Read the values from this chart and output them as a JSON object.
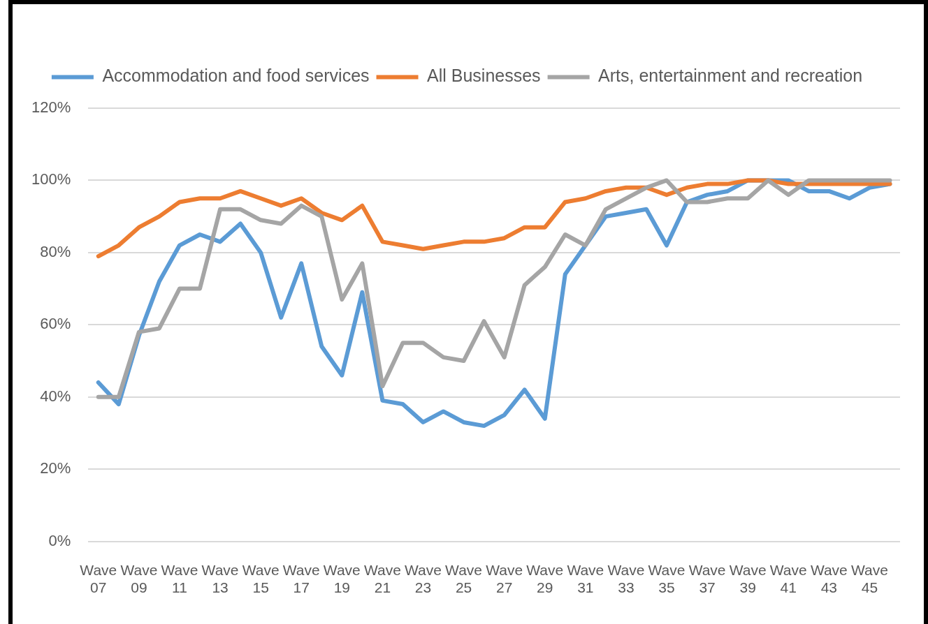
{
  "chart_data": {
    "type": "line",
    "categories": [
      "Wave 07",
      null,
      "Wave 09",
      null,
      "Wave 11",
      null,
      "Wave 13",
      null,
      "Wave 15",
      null,
      "Wave 17",
      null,
      "Wave 19",
      null,
      "Wave 21",
      null,
      "Wave 23",
      null,
      "Wave 25",
      null,
      "Wave 27",
      null,
      "Wave 29",
      null,
      "Wave 31",
      null,
      "Wave 33",
      null,
      "Wave 35",
      null,
      "Wave 37",
      null,
      "Wave 39",
      null,
      "Wave 41",
      null,
      "Wave 43",
      null,
      "Wave 45",
      null
    ],
    "series": [
      {
        "name": "Accommodation and food services",
        "color": "#5b9bd5",
        "values": [
          44,
          38,
          57,
          72,
          82,
          85,
          83,
          88,
          80,
          62,
          77,
          54,
          46,
          69,
          39,
          38,
          33,
          36,
          33,
          32,
          35,
          42,
          34,
          74,
          82,
          90,
          91,
          92,
          82,
          94,
          96,
          97,
          100,
          100,
          100,
          97,
          97,
          95,
          98,
          99
        ]
      },
      {
        "name": "All Businesses",
        "color": "#ed7d31",
        "values": [
          79,
          82,
          87,
          90,
          94,
          95,
          95,
          97,
          95,
          93,
          95,
          91,
          89,
          93,
          83,
          82,
          81,
          82,
          83,
          83,
          84,
          87,
          87,
          94,
          95,
          97,
          98,
          98,
          96,
          98,
          99,
          99,
          100,
          100,
          99,
          99,
          99,
          99,
          99,
          99
        ]
      },
      {
        "name": "Arts, entertainment and recreation",
        "color": "#a5a5a5",
        "values": [
          40,
          40,
          58,
          59,
          70,
          70,
          92,
          92,
          89,
          88,
          93,
          90,
          67,
          77,
          43,
          55,
          55,
          51,
          50,
          61,
          51,
          71,
          76,
          85,
          82,
          92,
          95,
          98,
          100,
          94,
          94,
          95,
          95,
          100,
          96,
          100,
          100,
          100,
          100,
          100
        ]
      }
    ],
    "ylim": [
      0,
      120
    ],
    "yticks": [
      {
        "value": 0,
        "label": "0%"
      },
      {
        "value": 20,
        "label": "20%"
      },
      {
        "value": 40,
        "label": "40%"
      },
      {
        "value": 60,
        "label": "60%"
      },
      {
        "value": 80,
        "label": "80%"
      },
      {
        "value": 100,
        "label": "100%"
      },
      {
        "value": 120,
        "label": "120%"
      }
    ],
    "grid": "y",
    "legend": "top",
    "marker": "none",
    "line_style": "solid"
  }
}
